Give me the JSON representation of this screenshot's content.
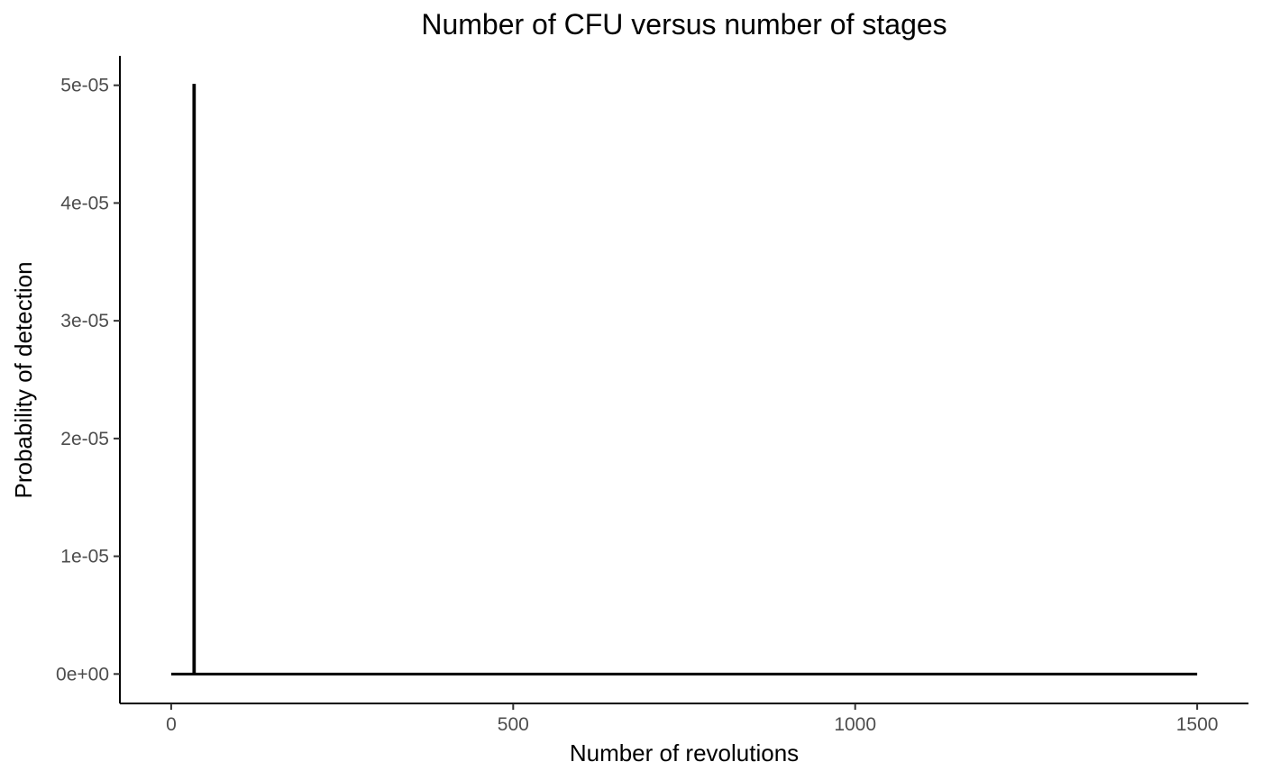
{
  "chart_data": {
    "type": "line",
    "title": "Number of CFU versus number of stages",
    "xlabel": "Number of revolutions",
    "ylabel": "Probability of detection",
    "xlim": [
      -75,
      1575
    ],
    "ylim": [
      -2.5e-06,
      5.25e-05
    ],
    "x_ticks": [
      0,
      500,
      1000,
      1500
    ],
    "x_tick_labels": [
      "0",
      "500",
      "1000",
      "1500"
    ],
    "y_ticks": [
      0,
      1e-05,
      2e-05,
      3e-05,
      4e-05,
      5e-05
    ],
    "y_tick_labels": [
      "0e+00",
      "1e-05",
      "2e-05",
      "3e-05",
      "4e-05",
      "5e-05"
    ],
    "grid": false,
    "legend": "none",
    "line_color": "#000000",
    "series": [
      {
        "x": [
          0,
          33,
          33,
          34,
          34,
          1500
        ],
        "y": [
          0,
          0,
          5e-05,
          5e-05,
          0,
          0
        ]
      }
    ]
  }
}
